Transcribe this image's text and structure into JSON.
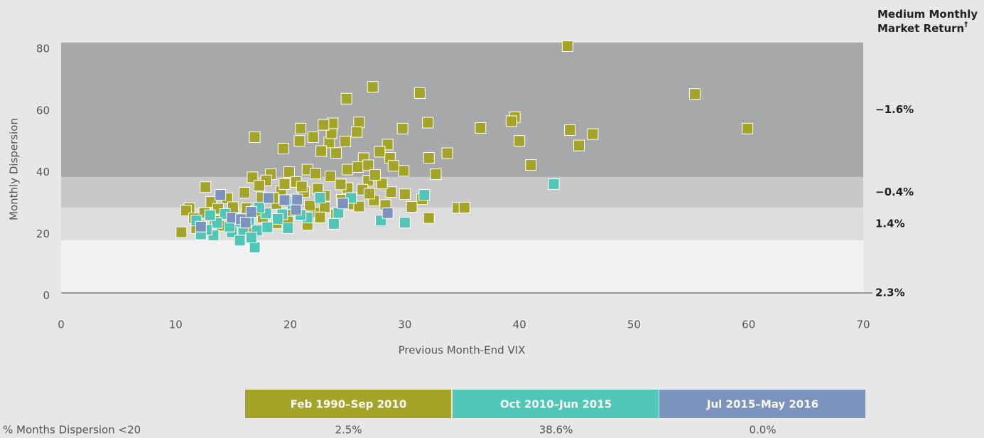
{
  "chart_data": {
    "type": "scatter",
    "x_label": "Previous Month-End VIX",
    "y_label": "Monthly Dispersion",
    "xlim": [
      0,
      70
    ],
    "xticks": [
      0,
      10,
      20,
      30,
      40,
      50,
      60,
      70
    ],
    "ylim": [
      0,
      80
    ],
    "yticks": [
      0,
      20,
      40,
      60,
      80
    ],
    "band_title": "Medium Monthly Market Return",
    "band_title_mark": "†",
    "bands": [
      {
        "from": 37.6,
        "to": 81.2,
        "label": "−1.6%",
        "color": "#a7a8aa"
      },
      {
        "from": 27.7,
        "to": 37.6,
        "label": "−0.4%",
        "color": "#c8c8ca"
      },
      {
        "from": 17.1,
        "to": 27.7,
        "label": "1.4%",
        "color": "#dcdcdd"
      },
      {
        "from": 0,
        "to": 17.1,
        "label": "2.3%",
        "color": "#f1f1f2"
      }
    ],
    "series": [
      {
        "name": "Feb 1990–Sep 2010",
        "color": "#a3a428",
        "x": [
          44.2,
          55.3,
          59.9,
          46.4,
          44.4,
          45.2,
          39.6,
          39.3,
          40,
          41,
          36.6,
          33.7,
          31.3,
          32,
          32.1,
          32.7,
          27.2,
          24.9,
          26,
          29.8,
          25.8,
          16.9,
          20.9,
          22,
          20.8,
          19.4,
          34.6,
          35.2,
          32.1,
          31.5,
          30.6,
          29.9,
          28.7,
          28.5,
          27.8,
          29,
          28.8,
          28,
          26.8,
          25,
          24,
          23.4,
          22.7,
          23.6,
          24.8,
          26.4,
          25.9,
          21.5,
          19.9,
          18.3,
          16.7,
          17.9,
          20.5,
          22.2,
          23.5,
          25,
          26.3,
          24.5,
          23,
          21.2,
          19.2,
          17.5,
          16,
          14.5,
          13.1,
          12.6,
          11.2,
          10.9,
          10.5,
          11.6,
          12.2,
          13.4,
          14.6,
          15.3,
          16.3,
          17.6,
          18.8,
          19.8,
          21.5,
          22.1,
          23,
          25.3,
          27.3,
          30,
          13.7,
          15,
          16.2,
          18.8,
          20.2,
          21.7,
          22.6,
          17.3,
          19.5,
          24.4,
          26.8,
          27.4,
          23.7,
          22.9,
          26.9,
          12.5,
          14,
          11.8,
          17,
          18.5,
          20,
          21,
          22.4,
          24,
          26,
          28.3
        ],
        "values": [
          80,
          64.5,
          53.3,
          51.5,
          52.8,
          47.8,
          57,
          55.7,
          49.3,
          41.5,
          53.5,
          45.3,
          64.8,
          55.2,
          43.8,
          38.5,
          66.8,
          63,
          55.3,
          53.3,
          52.2,
          50.5,
          53.3,
          50.5,
          49.3,
          46.8,
          27.6,
          27.7,
          24.3,
          30.4,
          27.9,
          39.6,
          43.8,
          48.1,
          45.8,
          41.2,
          32.7,
          35.5,
          36.4,
          40,
          45.4,
          48.8,
          46,
          51.8,
          49.1,
          43.7,
          40.8,
          40,
          39.2,
          38.5,
          37.5,
          36.5,
          36,
          38.7,
          37.8,
          34,
          33.5,
          30.2,
          31.5,
          32.7,
          33,
          31,
          32.5,
          30.7,
          29.5,
          34.3,
          27.5,
          26.7,
          19.7,
          24.2,
          22,
          23.3,
          24,
          20.6,
          21.5,
          24.5,
          22.6,
          24.3,
          22.1,
          26,
          27.8,
          28.7,
          30,
          32,
          27.3,
          27.8,
          27.5,
          28.8,
          26.6,
          28.3,
          24.5,
          34.8,
          35.3,
          35.2,
          41.4,
          38.3,
          55,
          54.5,
          32.2,
          26,
          21.8,
          21,
          26.7,
          30.8,
          29.5,
          34.5,
          33.8,
          25.5,
          28,
          28.5
        ]
      },
      {
        "name": "Oct 2010–Jun 2015",
        "color": "#4fc6b6",
        "x": [
          43,
          31.7,
          30,
          27.9,
          25.3,
          24.2,
          23.8,
          22.6,
          21.5,
          20.2,
          19.3,
          18.9,
          17.9,
          17.3,
          17.1,
          16.9,
          16.4,
          15.9,
          15.4,
          14.9,
          14.3,
          13.6,
          13.3,
          12.7,
          12.2,
          11.8,
          13,
          14.7,
          16.6,
          15.6,
          18,
          19.8,
          20.9
        ],
        "values": [
          35.3,
          31.8,
          22.8,
          23.5,
          30.8,
          26,
          22.4,
          30.9,
          24.5,
          28.8,
          25.5,
          24,
          25.8,
          27.7,
          20.3,
          14.8,
          23.7,
          20,
          23,
          19.7,
          25.6,
          22.7,
          18.7,
          20.5,
          19,
          23.5,
          25.2,
          21.5,
          18,
          17,
          21.3,
          21,
          25.3
        ]
      },
      {
        "name": "Jul 2015–May 2016",
        "color": "#7b93bd",
        "x": [
          13.9,
          12.2,
          14.9,
          15.7,
          16.1,
          16.6,
          18.1,
          19.5,
          20.5,
          20.6,
          24.6,
          28.5
        ],
        "values": [
          31.8,
          21.5,
          24.4,
          23.9,
          22.8,
          26.3,
          30.8,
          30.1,
          27,
          30.3,
          29,
          25.9
        ]
      }
    ],
    "table": {
      "row_label": "% Months Dispersion <20",
      "values": [
        "2.5%",
        "38.6%",
        "0.0%"
      ]
    }
  }
}
